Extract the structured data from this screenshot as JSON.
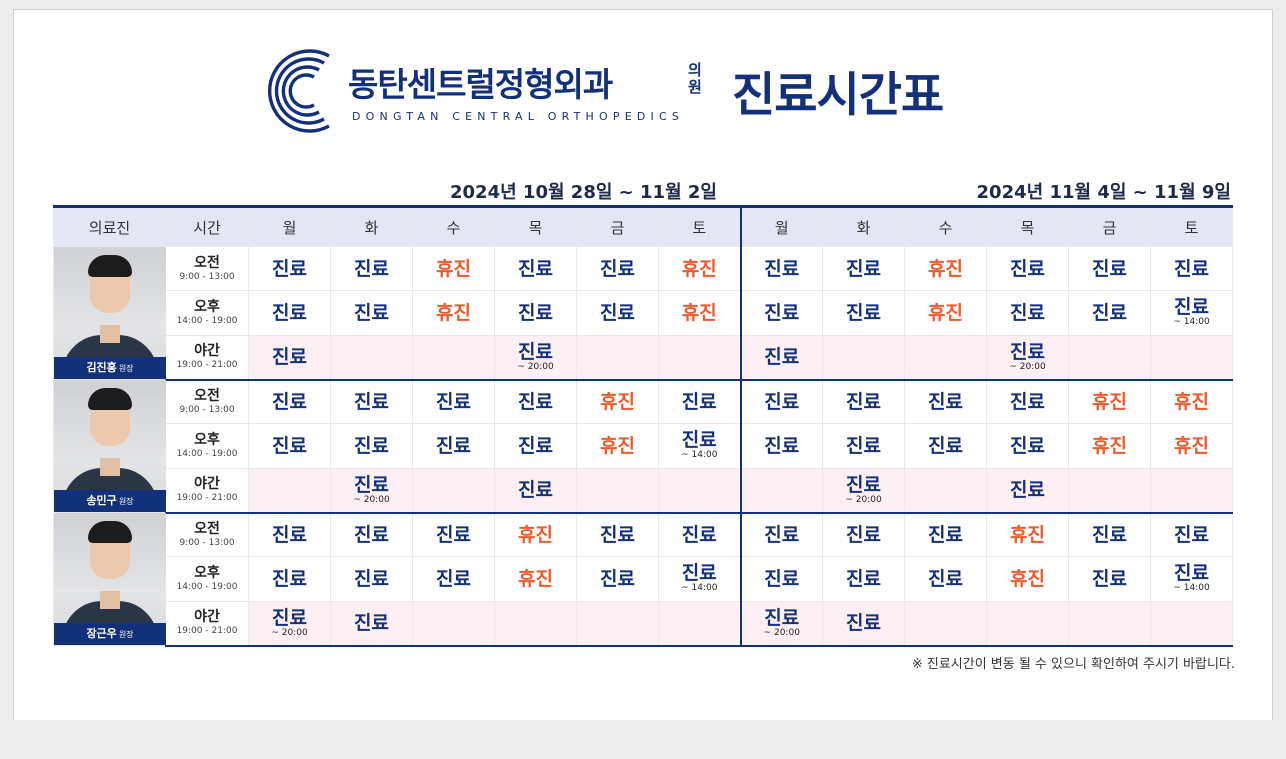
{
  "header": {
    "clinic_name": "동탄센트럴정형외과",
    "clinic_suffix": "의원",
    "clinic_name_en": "DONGTAN CENTRAL ORTHOPEDICS",
    "title": "진료시간표"
  },
  "periods": [
    "2024년 10월 28일 ~ 11월 2일",
    "2024년 11월 4일 ~ 11월 9일"
  ],
  "columns": {
    "doctor": "의료진",
    "time": "시간",
    "days": [
      "월",
      "화",
      "수",
      "목",
      "금",
      "토",
      "월",
      "화",
      "수",
      "목",
      "금",
      "토"
    ]
  },
  "doctors": [
    {
      "name": "김진홍",
      "role": "원장",
      "rows": [
        {
          "label": "오전",
          "hours": "9:00 - 13:00",
          "cells": [
            {
              "t": "진료"
            },
            {
              "t": "진료"
            },
            {
              "t": "휴진"
            },
            {
              "t": "진료"
            },
            {
              "t": "진료"
            },
            {
              "t": "휴진"
            },
            {
              "t": "진료"
            },
            {
              "t": "진료"
            },
            {
              "t": "휴진"
            },
            {
              "t": "진료"
            },
            {
              "t": "진료"
            },
            {
              "t": "진료"
            }
          ]
        },
        {
          "label": "오후",
          "hours": "14:00 - 19:00",
          "cells": [
            {
              "t": "진료"
            },
            {
              "t": "진료"
            },
            {
              "t": "휴진"
            },
            {
              "t": "진료"
            },
            {
              "t": "진료"
            },
            {
              "t": "휴진"
            },
            {
              "t": "진료"
            },
            {
              "t": "진료"
            },
            {
              "t": "휴진"
            },
            {
              "t": "진료"
            },
            {
              "t": "진료"
            },
            {
              "t": "진료",
              "n": "~ 14:00"
            }
          ]
        },
        {
          "label": "야간",
          "hours": "19:00 - 21:00",
          "cells": [
            {
              "t": "진료"
            },
            {},
            {},
            {
              "t": "진료",
              "n": "~ 20:00"
            },
            {},
            {},
            {
              "t": "진료"
            },
            {},
            {},
            {
              "t": "진료",
              "n": "~ 20:00"
            },
            {},
            {}
          ]
        }
      ]
    },
    {
      "name": "송민구",
      "role": "원장",
      "rows": [
        {
          "label": "오전",
          "hours": "9:00 - 13:00",
          "cells": [
            {
              "t": "진료"
            },
            {
              "t": "진료"
            },
            {
              "t": "진료"
            },
            {
              "t": "진료"
            },
            {
              "t": "휴진"
            },
            {
              "t": "진료"
            },
            {
              "t": "진료"
            },
            {
              "t": "진료"
            },
            {
              "t": "진료"
            },
            {
              "t": "진료"
            },
            {
              "t": "휴진"
            },
            {
              "t": "휴진"
            }
          ]
        },
        {
          "label": "오후",
          "hours": "14:00 - 19:00",
          "cells": [
            {
              "t": "진료"
            },
            {
              "t": "진료"
            },
            {
              "t": "진료"
            },
            {
              "t": "진료"
            },
            {
              "t": "휴진"
            },
            {
              "t": "진료",
              "n": "~ 14:00"
            },
            {
              "t": "진료"
            },
            {
              "t": "진료"
            },
            {
              "t": "진료"
            },
            {
              "t": "진료"
            },
            {
              "t": "휴진"
            },
            {
              "t": "휴진"
            }
          ]
        },
        {
          "label": "야간",
          "hours": "19:00 - 21:00",
          "cells": [
            {},
            {
              "t": "진료",
              "n": "~ 20:00"
            },
            {},
            {
              "t": "진료"
            },
            {},
            {},
            {},
            {
              "t": "진료",
              "n": "~ 20:00"
            },
            {},
            {
              "t": "진료"
            },
            {},
            {}
          ]
        }
      ]
    },
    {
      "name": "장근우",
      "role": "원장",
      "rows": [
        {
          "label": "오전",
          "hours": "9:00 - 13:00",
          "cells": [
            {
              "t": "진료"
            },
            {
              "t": "진료"
            },
            {
              "t": "진료"
            },
            {
              "t": "휴진"
            },
            {
              "t": "진료"
            },
            {
              "t": "진료"
            },
            {
              "t": "진료"
            },
            {
              "t": "진료"
            },
            {
              "t": "진료"
            },
            {
              "t": "휴진"
            },
            {
              "t": "진료"
            },
            {
              "t": "진료"
            }
          ]
        },
        {
          "label": "오후",
          "hours": "14:00 - 19:00",
          "cells": [
            {
              "t": "진료"
            },
            {
              "t": "진료"
            },
            {
              "t": "진료"
            },
            {
              "t": "휴진"
            },
            {
              "t": "진료"
            },
            {
              "t": "진료",
              "n": "~ 14:00"
            },
            {
              "t": "진료"
            },
            {
              "t": "진료"
            },
            {
              "t": "진료"
            },
            {
              "t": "휴진"
            },
            {
              "t": "진료"
            },
            {
              "t": "진료",
              "n": "~ 14:00"
            }
          ]
        },
        {
          "label": "야간",
          "hours": "19:00 - 21:00",
          "cells": [
            {
              "t": "진료",
              "n": "~ 20:00"
            },
            {
              "t": "진료"
            },
            {},
            {},
            {},
            {},
            {
              "t": "진료",
              "n": "~ 20:00"
            },
            {
              "t": "진료"
            },
            {},
            {},
            {},
            {}
          ]
        }
      ]
    }
  ],
  "footnote": "※ 진료시간이 변동 될 수 있으니 확인하여 주시기 바랍니다.",
  "colors": {
    "brand": "#13307a",
    "open": "#13307a",
    "closed": "#ee5a2c",
    "night_bg": "#fdf0f5",
    "header_bg": "#e4e7f3"
  },
  "icons": {
    "logo": "logo-icon"
  }
}
